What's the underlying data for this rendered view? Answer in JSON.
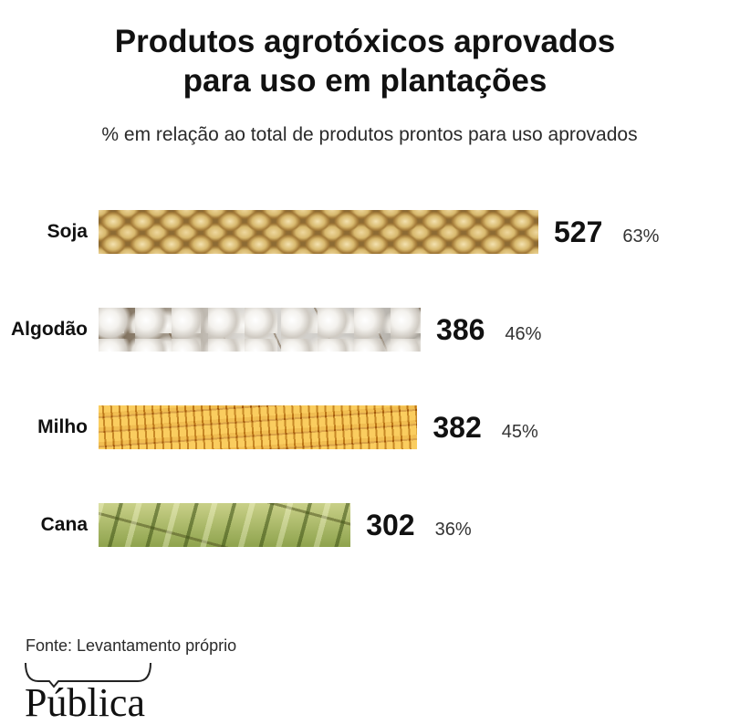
{
  "chart_data": {
    "type": "bar",
    "orientation": "horizontal",
    "title": "Produtos agrotóxicos aprovados\npara uso em plantações",
    "subtitle": "% em relação ao total de produtos prontos para uso aprovados",
    "categories": [
      "Soja",
      "Algodão",
      "Milho",
      "Cana"
    ],
    "values": [
      527,
      386,
      382,
      302
    ],
    "percent_labels": [
      "63%",
      "46%",
      "45%",
      "36%"
    ],
    "xlim": [
      0,
      527
    ],
    "grid": false,
    "legend": "none",
    "bar_colors": [
      "#d8b96e",
      "#e8e6e2",
      "#e9a02a",
      "#a9bb66"
    ]
  },
  "source": "Fonte: Levantamento próprio",
  "logo": {
    "text": "Pública"
  }
}
